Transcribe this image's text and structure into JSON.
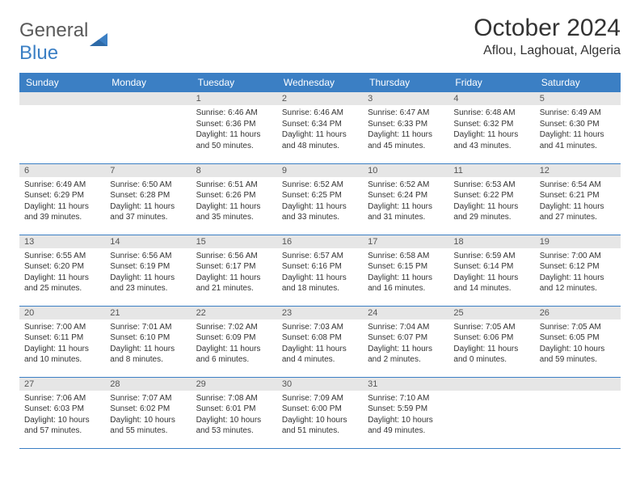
{
  "logo": {
    "part1": "General",
    "part2": "Blue"
  },
  "title": "October 2024",
  "location": "Aflou, Laghouat, Algeria",
  "colors": {
    "header_bg": "#3b7fc4",
    "header_text": "#ffffff",
    "daynum_bg": "#e6e6e6",
    "border": "#3b7fc4",
    "text": "#333333",
    "logo_gray": "#5a5a5a",
    "logo_blue": "#3b7fc4"
  },
  "weekdays": [
    "Sunday",
    "Monday",
    "Tuesday",
    "Wednesday",
    "Thursday",
    "Friday",
    "Saturday"
  ],
  "weeks": [
    [
      null,
      null,
      {
        "n": "1",
        "sr": "6:46 AM",
        "ss": "6:36 PM",
        "dl": "11 hours and 50 minutes."
      },
      {
        "n": "2",
        "sr": "6:46 AM",
        "ss": "6:34 PM",
        "dl": "11 hours and 48 minutes."
      },
      {
        "n": "3",
        "sr": "6:47 AM",
        "ss": "6:33 PM",
        "dl": "11 hours and 45 minutes."
      },
      {
        "n": "4",
        "sr": "6:48 AM",
        "ss": "6:32 PM",
        "dl": "11 hours and 43 minutes."
      },
      {
        "n": "5",
        "sr": "6:49 AM",
        "ss": "6:30 PM",
        "dl": "11 hours and 41 minutes."
      }
    ],
    [
      {
        "n": "6",
        "sr": "6:49 AM",
        "ss": "6:29 PM",
        "dl": "11 hours and 39 minutes."
      },
      {
        "n": "7",
        "sr": "6:50 AM",
        "ss": "6:28 PM",
        "dl": "11 hours and 37 minutes."
      },
      {
        "n": "8",
        "sr": "6:51 AM",
        "ss": "6:26 PM",
        "dl": "11 hours and 35 minutes."
      },
      {
        "n": "9",
        "sr": "6:52 AM",
        "ss": "6:25 PM",
        "dl": "11 hours and 33 minutes."
      },
      {
        "n": "10",
        "sr": "6:52 AM",
        "ss": "6:24 PM",
        "dl": "11 hours and 31 minutes."
      },
      {
        "n": "11",
        "sr": "6:53 AM",
        "ss": "6:22 PM",
        "dl": "11 hours and 29 minutes."
      },
      {
        "n": "12",
        "sr": "6:54 AM",
        "ss": "6:21 PM",
        "dl": "11 hours and 27 minutes."
      }
    ],
    [
      {
        "n": "13",
        "sr": "6:55 AM",
        "ss": "6:20 PM",
        "dl": "11 hours and 25 minutes."
      },
      {
        "n": "14",
        "sr": "6:56 AM",
        "ss": "6:19 PM",
        "dl": "11 hours and 23 minutes."
      },
      {
        "n": "15",
        "sr": "6:56 AM",
        "ss": "6:17 PM",
        "dl": "11 hours and 21 minutes."
      },
      {
        "n": "16",
        "sr": "6:57 AM",
        "ss": "6:16 PM",
        "dl": "11 hours and 18 minutes."
      },
      {
        "n": "17",
        "sr": "6:58 AM",
        "ss": "6:15 PM",
        "dl": "11 hours and 16 minutes."
      },
      {
        "n": "18",
        "sr": "6:59 AM",
        "ss": "6:14 PM",
        "dl": "11 hours and 14 minutes."
      },
      {
        "n": "19",
        "sr": "7:00 AM",
        "ss": "6:12 PM",
        "dl": "11 hours and 12 minutes."
      }
    ],
    [
      {
        "n": "20",
        "sr": "7:00 AM",
        "ss": "6:11 PM",
        "dl": "11 hours and 10 minutes."
      },
      {
        "n": "21",
        "sr": "7:01 AM",
        "ss": "6:10 PM",
        "dl": "11 hours and 8 minutes."
      },
      {
        "n": "22",
        "sr": "7:02 AM",
        "ss": "6:09 PM",
        "dl": "11 hours and 6 minutes."
      },
      {
        "n": "23",
        "sr": "7:03 AM",
        "ss": "6:08 PM",
        "dl": "11 hours and 4 minutes."
      },
      {
        "n": "24",
        "sr": "7:04 AM",
        "ss": "6:07 PM",
        "dl": "11 hours and 2 minutes."
      },
      {
        "n": "25",
        "sr": "7:05 AM",
        "ss": "6:06 PM",
        "dl": "11 hours and 0 minutes."
      },
      {
        "n": "26",
        "sr": "7:05 AM",
        "ss": "6:05 PM",
        "dl": "10 hours and 59 minutes."
      }
    ],
    [
      {
        "n": "27",
        "sr": "7:06 AM",
        "ss": "6:03 PM",
        "dl": "10 hours and 57 minutes."
      },
      {
        "n": "28",
        "sr": "7:07 AM",
        "ss": "6:02 PM",
        "dl": "10 hours and 55 minutes."
      },
      {
        "n": "29",
        "sr": "7:08 AM",
        "ss": "6:01 PM",
        "dl": "10 hours and 53 minutes."
      },
      {
        "n": "30",
        "sr": "7:09 AM",
        "ss": "6:00 PM",
        "dl": "10 hours and 51 minutes."
      },
      {
        "n": "31",
        "sr": "7:10 AM",
        "ss": "5:59 PM",
        "dl": "10 hours and 49 minutes."
      },
      null,
      null
    ]
  ],
  "labels": {
    "sunrise": "Sunrise:",
    "sunset": "Sunset:",
    "daylight": "Daylight:"
  }
}
